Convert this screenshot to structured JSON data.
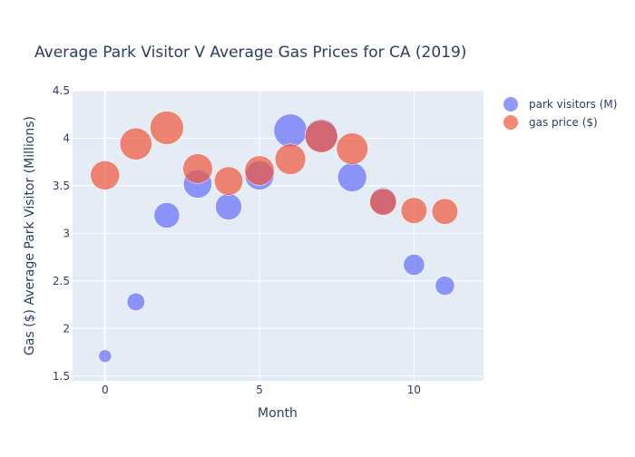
{
  "chart_data": {
    "type": "scatter",
    "title": "Average Park Visitor V Average Gas Prices for CA (2019)",
    "xlabel": "Month",
    "ylabel": "Gas ($) Average Park Visitor (Millions)",
    "xlim": [
      -1.05,
      12.25
    ],
    "ylim": [
      1.45,
      4.5
    ],
    "x_ticks": [
      0,
      5,
      10
    ],
    "y_ticks": [
      1.5,
      2,
      2.5,
      3,
      3.5,
      4,
      4.5
    ],
    "grid": true,
    "legend_position": "top-right",
    "background": "#e5ecf6",
    "marker_style": "bubble",
    "series": [
      {
        "name": "park visitors (M)",
        "color": "#636efa",
        "x": [
          0,
          1,
          2,
          3,
          4,
          5,
          6,
          7,
          8,
          9,
          10,
          11
        ],
        "y": [
          1.71,
          2.28,
          3.19,
          3.52,
          3.28,
          3.61,
          4.08,
          4.03,
          3.59,
          3.34,
          2.67,
          2.45
        ],
        "size": [
          1.71,
          2.28,
          3.19,
          3.52,
          3.28,
          3.61,
          4.08,
          4.03,
          3.59,
          3.34,
          2.67,
          2.45
        ]
      },
      {
        "name": "gas price ($)",
        "color": "#ef553b",
        "x": [
          0,
          1,
          2,
          3,
          4,
          5,
          6,
          7,
          8,
          9,
          10,
          11
        ],
        "y": [
          3.61,
          3.94,
          4.11,
          3.68,
          3.55,
          3.66,
          3.78,
          4.02,
          3.89,
          3.33,
          3.24,
          3.23
        ],
        "size": [
          3.61,
          3.94,
          4.11,
          3.68,
          3.55,
          3.66,
          3.78,
          4.02,
          3.89,
          3.33,
          3.24,
          3.23
        ]
      }
    ]
  }
}
